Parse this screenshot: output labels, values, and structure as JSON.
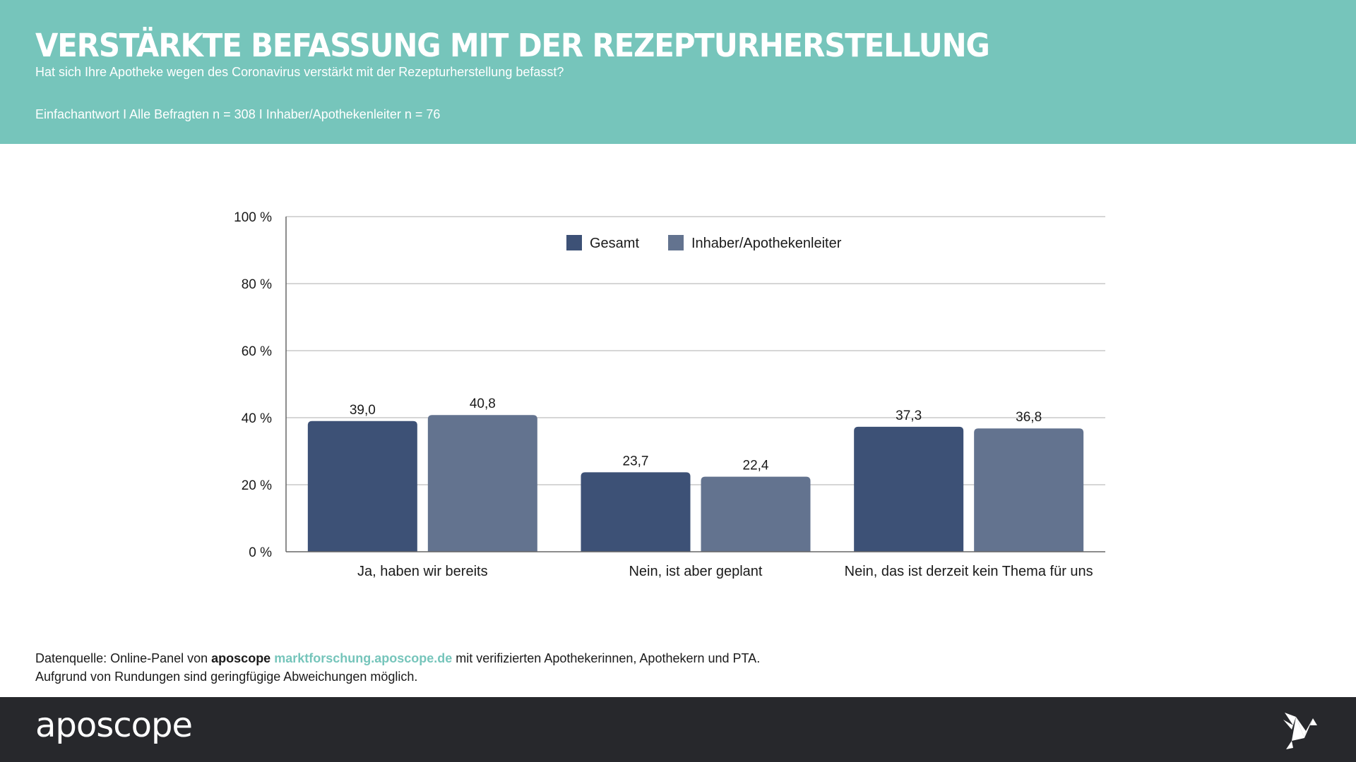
{
  "header": {
    "title": "VERSTÄRKTE BEFASSUNG MIT DER REZEPTURHERSTELLUNG",
    "subtitle": "Hat sich Ihre Apotheke wegen des Coronavirus verstärkt mit der Rezepturherstellung befasst?",
    "meta": "Einfachantwort I Alle Befragten n = 308 I Inhaber/Apothekenleiter n = 76"
  },
  "colors": {
    "accent": "#76c5bb",
    "series_gesamt": "#3d5176",
    "series_inhaber": "#63738f",
    "footer_bg": "#27282c"
  },
  "chart_data": {
    "type": "bar",
    "title": "",
    "xlabel": "",
    "ylabel": "",
    "categories": [
      "Ja, haben wir bereits",
      "Nein, ist aber geplant",
      "Nein, das ist derzeit kein Thema für uns"
    ],
    "series": [
      {
        "name": "Gesamt",
        "values": [
          39.0,
          23.7,
          37.3
        ],
        "labels": [
          "39,0",
          "23,7",
          "37,3"
        ],
        "color": "#3d5176"
      },
      {
        "name": "Inhaber/Apothekenleiter",
        "values": [
          40.8,
          22.4,
          36.8
        ],
        "labels": [
          "40,8",
          "22,4",
          "36,8"
        ],
        "color": "#63738f"
      }
    ],
    "ylim": [
      0,
      100
    ],
    "yticks": [
      0,
      20,
      40,
      60,
      80,
      100
    ],
    "ytick_labels": [
      "0 %",
      "20 %",
      "40 %",
      "60 %",
      "80 %",
      "100 %"
    ],
    "grid": true,
    "legend_position": "top-center"
  },
  "footnote": {
    "line1_prefix": "Datenquelle: Online-Panel von ",
    "brand": "aposcope",
    "link": "marktforschung.aposcope.de",
    "line1_suffix": " mit verifizierten Apothekerinnen, Apothekern und PTA.",
    "line2": "Aufgrund von Rundungen sind geringfügige Abweichungen möglich."
  },
  "footer": {
    "wordmark": "aposcope",
    "logo_icon": "origami-bird-icon"
  }
}
